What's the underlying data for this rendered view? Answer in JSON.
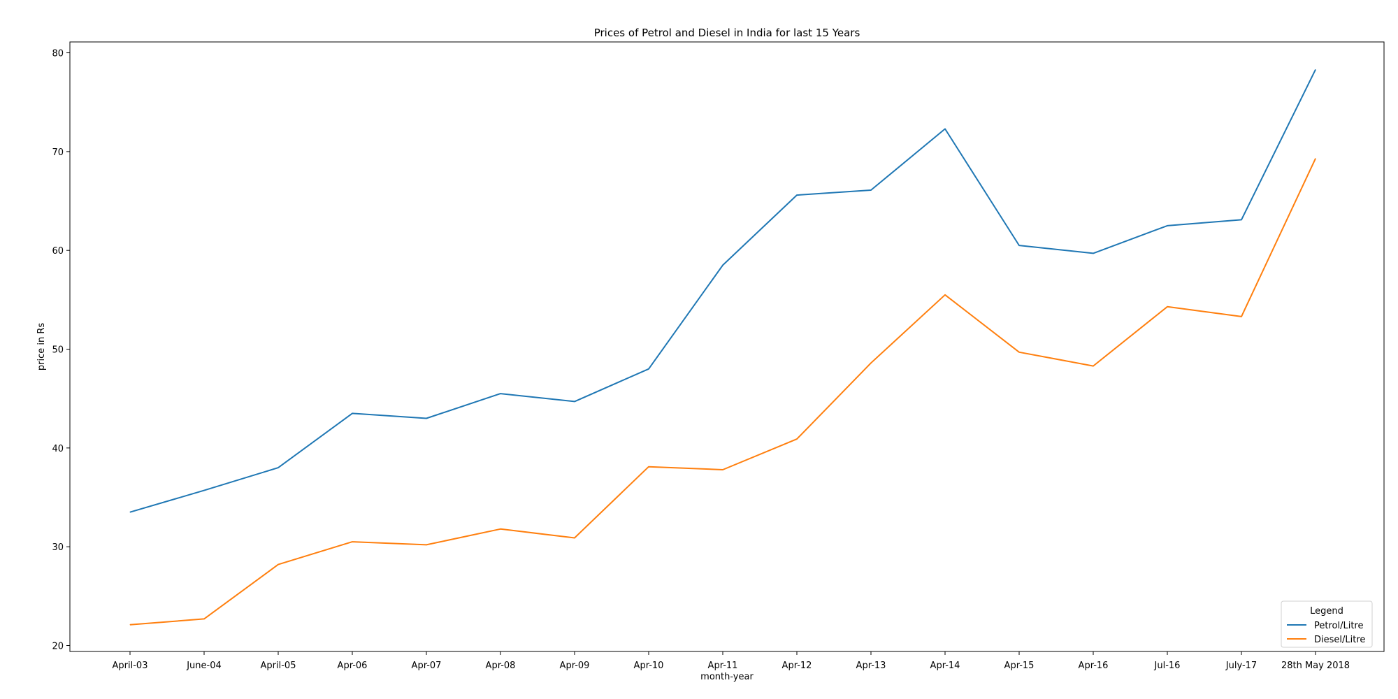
{
  "chart_data": {
    "type": "line",
    "title": "Prices of Petrol and Diesel in India for last 15 Years",
    "xlabel": "month-year",
    "ylabel": "price in Rs",
    "categories": [
      "April-03",
      "June-04",
      "April-05",
      "Apr-06",
      "Apr-07",
      "Apr-08",
      "Apr-09",
      "Apr-10",
      "Apr-11",
      "Apr-12",
      "Apr-13",
      "Apr-14",
      "Apr-15",
      "Apr-16",
      "Jul-16",
      "July-17",
      "28th May 2018"
    ],
    "ylim": [
      19.4,
      81.1
    ],
    "yticks": [
      20,
      30,
      40,
      50,
      60,
      70,
      80
    ],
    "grid": false,
    "legend": {
      "title": "Legend",
      "placement": "lower-right"
    },
    "series": [
      {
        "name": "Petrol/Litre",
        "color": "#1f77b4",
        "values": [
          33.5,
          35.7,
          38.0,
          43.5,
          43.0,
          45.5,
          44.7,
          48.0,
          58.5,
          65.6,
          66.1,
          72.3,
          60.5,
          59.7,
          62.5,
          63.1,
          78.3
        ]
      },
      {
        "name": "Diesel/Litre",
        "color": "#ff7f0e",
        "values": [
          22.1,
          22.7,
          28.2,
          30.5,
          30.2,
          31.8,
          30.9,
          38.1,
          37.8,
          40.9,
          48.6,
          55.5,
          49.7,
          48.3,
          54.3,
          53.3,
          69.3
        ]
      }
    ]
  }
}
